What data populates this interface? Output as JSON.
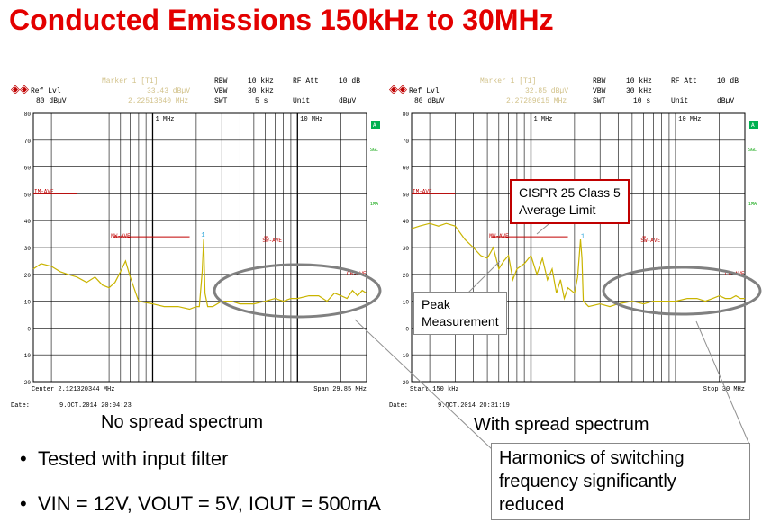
{
  "title": "Conducted Emissions 150kHz to 30MHz",
  "colors": {
    "title": "#e30000",
    "trace": "#c9b400",
    "limit": "#c00000",
    "grid": "#000000",
    "header": "#d2c28a"
  },
  "chart_data": [
    {
      "type": "line",
      "caption": "No spread spectrum",
      "header": {
        "marker_label": "Marker 1 [T1]",
        "marker_level": "33.43 dBµV",
        "marker_freq": "2.22513840 MHz",
        "rbw_label": "RBW",
        "rbw": "10 kHz",
        "vbw_label": "VBW",
        "vbw": "30 kHz",
        "swt_label": "SWT",
        "swt": "5 s",
        "rfatt_label": "RF Att",
        "rfatt": "10 dB",
        "unit_label": "Unit",
        "unit": "dBµV",
        "ref_label": "Ref Lvl",
        "ref": "80 dBµV"
      },
      "footer_left": "Center 2.121320344 MHz",
      "footer_right": "Span 29.85 MHz",
      "date": "Date:",
      "date_value": "9.OCT.2014   20:04:23",
      "y_ticks": [
        "80",
        "70",
        "60",
        "50",
        "40",
        "30",
        "20",
        "10",
        "0",
        "-10",
        "-20"
      ],
      "x_freq_labels": [
        "1 MHz",
        "10 MHz"
      ],
      "side_labels": [
        "A",
        "SGL",
        "1MA"
      ],
      "limit_labels": [
        "IM-AVE",
        "MW-AVE",
        "SW-AVE",
        "CB-AVE"
      ],
      "ylim": [
        -20,
        80
      ],
      "xlim_mhz": [
        0.15,
        30
      ],
      "limits": [
        {
          "name": "IM-AVE",
          "x": [
            0.15,
            0.3
          ],
          "y": [
            50,
            50
          ]
        },
        {
          "name": "MW-AVE",
          "x": [
            0.53,
            1.8
          ],
          "y": [
            34,
            34
          ]
        },
        {
          "name": "SW-AVE",
          "x": [
            5.9,
            6.2
          ],
          "y": [
            34,
            34
          ]
        },
        {
          "name": "CB-AVE",
          "x": [
            26,
            28
          ],
          "y": [
            20,
            20
          ]
        }
      ],
      "series": [
        {
          "x": [
            0.15,
            0.17,
            0.2,
            0.23,
            0.26,
            0.3,
            0.35,
            0.4,
            0.45,
            0.5,
            0.55,
            0.6,
            0.65,
            0.7,
            0.8,
            1.0,
            1.2,
            1.5,
            1.8,
            2.0,
            2.1,
            2.2,
            2.25,
            2.3,
            2.4,
            2.6,
            3.0,
            3.5,
            4.0,
            5.0,
            6.0,
            7.0,
            8.0,
            9.0,
            10.0,
            12.0,
            14.0,
            16.0,
            18.0,
            20.0,
            22.0,
            24.0,
            26.0,
            28.0,
            30.0
          ],
          "y": [
            22,
            24,
            23,
            21,
            20,
            19,
            17,
            19,
            16,
            15,
            17,
            21,
            25,
            19,
            10,
            9,
            8,
            8,
            7,
            8,
            8,
            21,
            33,
            13,
            8,
            8,
            10,
            10,
            9,
            9,
            10,
            11,
            10,
            11,
            11,
            12,
            12,
            10,
            13,
            12,
            11,
            14,
            12,
            14,
            13
          ]
        }
      ]
    },
    {
      "type": "line",
      "caption": "With spread spectrum",
      "header": {
        "marker_label": "Marker 1 [T1]",
        "marker_level": "32.85 dBµV",
        "marker_freq": "2.27289615 MHz",
        "rbw_label": "RBW",
        "rbw": "10 kHz",
        "vbw_label": "VBW",
        "vbw": "30 kHz",
        "swt_label": "SWT",
        "swt": "10 s",
        "rfatt_label": "RF Att",
        "rfatt": "10 dB",
        "unit_label": "Unit",
        "unit": "dBµV",
        "ref_label": "Ref Lvl",
        "ref": "80 dBµV"
      },
      "footer_left": "Start 150 kHz",
      "footer_right": "Stop 30 MHz",
      "date": "Date:",
      "date_value": "9.OCT.2014   20:31:19",
      "y_ticks": [
        "80",
        "70",
        "60",
        "50",
        "40",
        "30",
        "20",
        "10",
        "0",
        "-10",
        "-20"
      ],
      "x_freq_labels": [
        "1 MHz",
        "10 MHz"
      ],
      "side_labels": [
        "A",
        "SGL",
        "1MA"
      ],
      "limit_labels": [
        "IM-AVE",
        "MW-AVE",
        "SW-AVE",
        "CB-AVE"
      ],
      "ylim": [
        -20,
        80
      ],
      "xlim_mhz": [
        0.15,
        30
      ],
      "limits": [
        {
          "name": "IM-AVE",
          "x": [
            0.15,
            0.3
          ],
          "y": [
            50,
            50
          ]
        },
        {
          "name": "MW-AVE",
          "x": [
            0.53,
            1.8
          ],
          "y": [
            34,
            34
          ]
        },
        {
          "name": "SW-AVE",
          "x": [
            5.9,
            6.2
          ],
          "y": [
            34,
            34
          ]
        },
        {
          "name": "CB-AVE",
          "x": [
            26,
            28
          ],
          "y": [
            20,
            20
          ]
        }
      ],
      "series": [
        {
          "x": [
            0.15,
            0.17,
            0.2,
            0.23,
            0.26,
            0.3,
            0.35,
            0.4,
            0.45,
            0.5,
            0.55,
            0.6,
            0.65,
            0.7,
            0.75,
            0.8,
            0.9,
            1.0,
            1.1,
            1.2,
            1.3,
            1.4,
            1.5,
            1.6,
            1.7,
            1.8,
            2.0,
            2.1,
            2.2,
            2.25,
            2.3,
            2.5,
            3.0,
            3.5,
            4.0,
            5.0,
            6.0,
            7.0,
            8.0,
            10.0,
            12.0,
            14.0,
            16.0,
            18.0,
            20.0,
            22.0,
            24.0,
            26.0,
            28.0,
            30.0
          ],
          "y": [
            37,
            38,
            39,
            38,
            39,
            38,
            33,
            30,
            27,
            26,
            30,
            22,
            25,
            27,
            18,
            22,
            24,
            27,
            20,
            26,
            18,
            22,
            13,
            18,
            11,
            15,
            13,
            19,
            33,
            26,
            10,
            8,
            9,
            8,
            9,
            10,
            9,
            10,
            10,
            10,
            11,
            11,
            10,
            11,
            12,
            11,
            11,
            12,
            11,
            11
          ]
        }
      ]
    }
  ],
  "callouts": {
    "cispr_line1": "CISPR 25 Class 5",
    "cispr_line2": "Average  Limit",
    "peak_line1": "Peak",
    "peak_line2": "Measurement",
    "harmonics_line1": "Harmonics of switching",
    "harmonics_line2": "frequency significantly",
    "harmonics_line3": "reduced"
  },
  "bullets": [
    "Tested with input filter",
    "VIN = 12V, VOUT = 5V, IOUT = 500mA"
  ]
}
